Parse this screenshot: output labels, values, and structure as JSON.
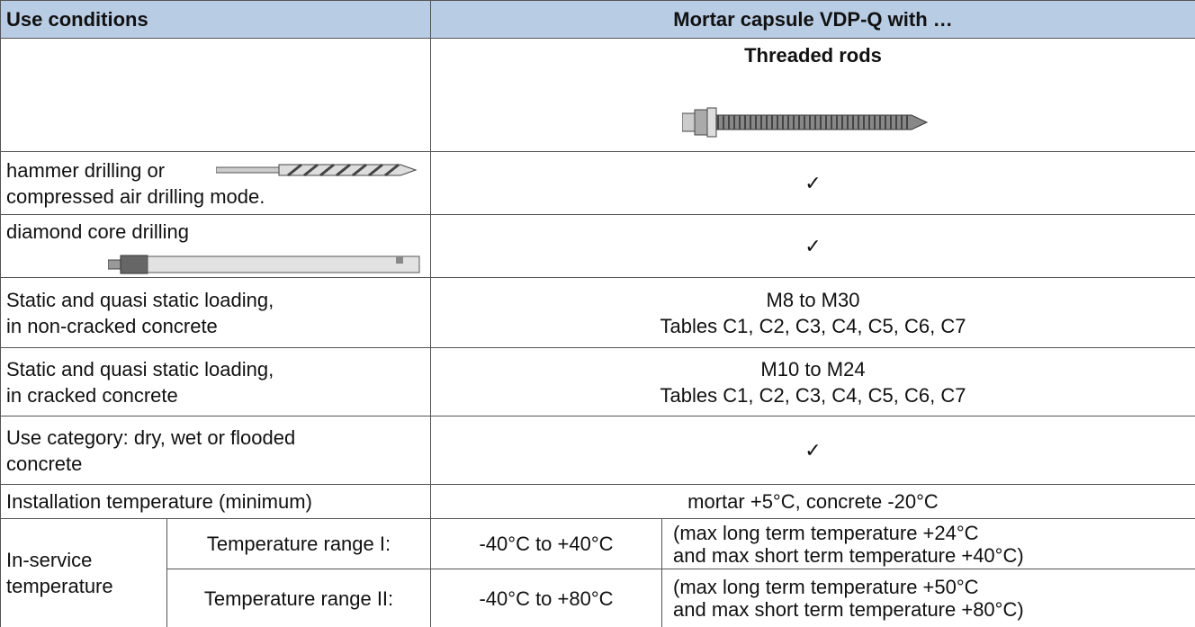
{
  "header": {
    "conditions": "Use conditions",
    "product": "Mortar capsule VDP-Q with …"
  },
  "subheader": {
    "product": "Threaded rods"
  },
  "rows": [
    {
      "condition": [
        "hammer drilling or",
        "compressed air drilling mode."
      ],
      "value": [
        "✓"
      ]
    },
    {
      "condition": [
        "diamond core drilling"
      ],
      "value": [
        "✓"
      ]
    },
    {
      "condition": [
        "Static and quasi static loading,",
        "in non-cracked concrete"
      ],
      "value": [
        "M8 to M30",
        "Tables C1, C2, C3, C4, C5, C6, C7"
      ]
    },
    {
      "condition": [
        "Static and quasi static loading,",
        "in cracked concrete"
      ],
      "value": [
        "M10 to M24",
        "Tables C1, C2, C3, C4, C5, C6, C7"
      ]
    },
    {
      "condition": [
        "Use category: dry, wet or flooded",
        "concrete"
      ],
      "value": [
        "✓"
      ]
    },
    {
      "condition": [
        "Installation temperature (minimum)"
      ],
      "value": [
        "mortar +5°C, concrete -20°C"
      ]
    }
  ],
  "in_service": {
    "label": [
      "In-service",
      "temperature"
    ],
    "ranges": [
      {
        "name": "Temperature range I:",
        "range": "-40°C to +40°C",
        "note": [
          "(max long term temperature +24°C",
          "and max short term temperature +40°C)"
        ]
      },
      {
        "name": "Temperature range II:",
        "range": "-40°C to +80°C",
        "note": [
          "(max long term temperature +50°C",
          "and max short term temperature +80°C)"
        ]
      }
    ]
  }
}
